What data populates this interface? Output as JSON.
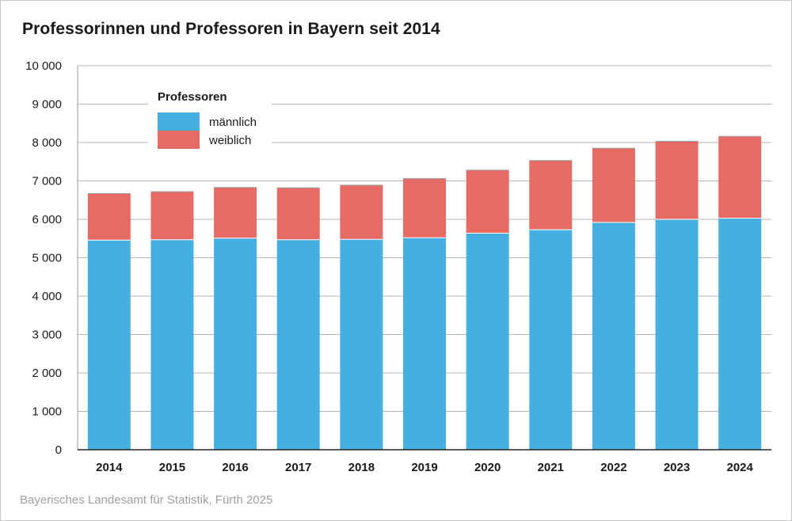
{
  "title": "Professorinnen und Professoren in Bayern seit 2014",
  "source": "Bayerisches Landesamt für Statistik, Fürth 2025",
  "colors": {
    "maennlich": "#45b0df",
    "weiblich": "#e56b64",
    "grid": "#b4b4b4",
    "axis": "#222222"
  },
  "chart_data": {
    "type": "bar",
    "stacked": true,
    "title": "Professorinnen und Professoren in Bayern seit 2014",
    "xlabel": "",
    "ylabel": "",
    "ylim": [
      0,
      10000
    ],
    "yticks": [
      0,
      1000,
      2000,
      3000,
      4000,
      5000,
      6000,
      7000,
      8000,
      9000,
      10000
    ],
    "ytick_labels": [
      "0",
      "1 000",
      "2 000",
      "3 000",
      "4 000",
      "5 000",
      "6 000",
      "7 000",
      "8 000",
      "9 000",
      "10 000"
    ],
    "grid": true,
    "categories": [
      "2014",
      "2015",
      "2016",
      "2017",
      "2018",
      "2019",
      "2020",
      "2021",
      "2022",
      "2023",
      "2024"
    ],
    "legend": {
      "title": "Professoren",
      "position": "top-left"
    },
    "series": [
      {
        "name": "männlich",
        "values": [
          5460,
          5470,
          5510,
          5470,
          5480,
          5520,
          5640,
          5730,
          5920,
          6000,
          6030
        ]
      },
      {
        "name": "weiblich",
        "values": [
          1210,
          1250,
          1320,
          1350,
          1410,
          1540,
          1640,
          1800,
          1930,
          2030,
          2130
        ]
      }
    ]
  }
}
